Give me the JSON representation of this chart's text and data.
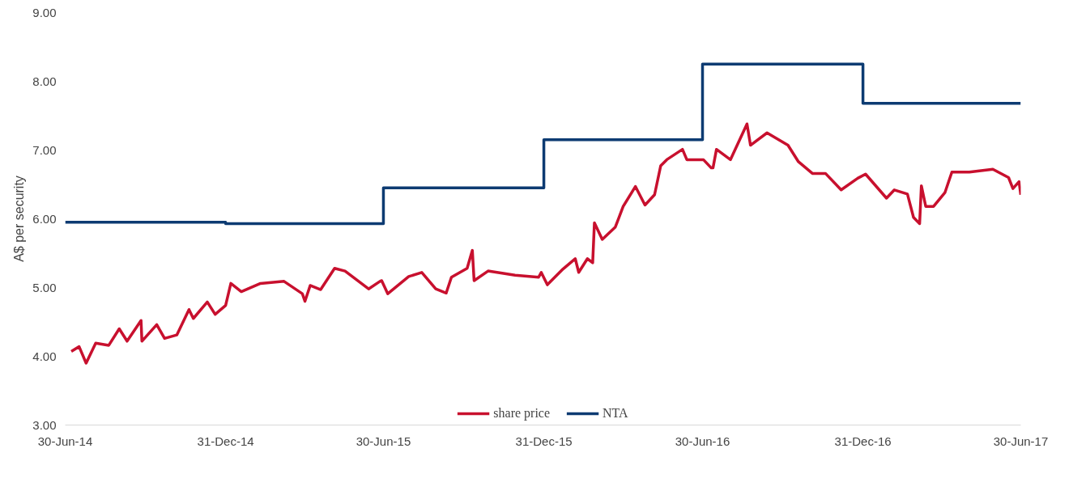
{
  "chart_data": {
    "type": "line",
    "ylabel": "A$ per security",
    "xlim": [
      "2014-06-30",
      "2017-06-30"
    ],
    "ylim": [
      3,
      9
    ],
    "xticks": [
      {
        "value": "2014-06-30",
        "label": "30-Jun-14"
      },
      {
        "value": "2014-12-31",
        "label": "31-Dec-14"
      },
      {
        "value": "2015-06-30",
        "label": "30-Jun-15"
      },
      {
        "value": "2015-12-31",
        "label": "31-Dec-15"
      },
      {
        "value": "2016-06-30",
        "label": "30-Jun-16"
      },
      {
        "value": "2016-12-31",
        "label": "31-Dec-16"
      },
      {
        "value": "2017-06-30",
        "label": "30-Jun-17"
      }
    ],
    "yticks": [
      {
        "value": 3,
        "label": "3.00"
      },
      {
        "value": 4,
        "label": "4.00"
      },
      {
        "value": 5,
        "label": "5.00"
      },
      {
        "value": 6,
        "label": "6.00"
      },
      {
        "value": 7,
        "label": "7.00"
      },
      {
        "value": 8,
        "label": "8.00"
      },
      {
        "value": 9,
        "label": "9.00"
      }
    ],
    "grid": false,
    "legend": "bottom",
    "line_style": "solid",
    "marker": "none",
    "series": [
      {
        "name": "share price",
        "color": "#c8102e",
        "type": "line",
        "x": [
          "2014-07-07",
          "2014-07-16",
          "2014-07-24",
          "2014-08-04",
          "2014-08-19",
          "2014-08-31",
          "2014-09-09",
          "2014-09-25",
          "2014-09-26",
          "2014-10-13",
          "2014-10-22",
          "2014-11-05",
          "2014-11-19",
          "2014-11-24",
          "2014-12-10",
          "2014-12-19",
          "2014-12-31",
          "2015-01-06",
          "2015-01-18",
          "2015-02-09",
          "2015-03-08",
          "2015-03-29",
          "2015-04-01",
          "2015-04-07",
          "2015-04-19",
          "2015-05-05",
          "2015-05-17",
          "2015-06-13",
          "2015-06-26",
          "2015-06-28",
          "2015-07-05",
          "2015-07-29",
          "2015-08-13",
          "2015-08-29",
          "2015-09-10",
          "2015-09-16",
          "2015-10-04",
          "2015-10-10",
          "2015-10-12",
          "2015-10-28",
          "2015-11-28",
          "2015-12-25",
          "2015-12-28",
          "2016-01-04",
          "2016-01-22",
          "2016-02-05",
          "2016-02-09",
          "2016-02-19",
          "2016-02-25",
          "2016-02-27",
          "2016-03-07",
          "2016-03-22",
          "2016-03-31",
          "2016-04-14",
          "2016-04-25",
          "2016-05-06",
          "2016-05-13",
          "2016-05-20",
          "2016-06-07",
          "2016-06-12",
          "2016-07-01",
          "2016-07-10",
          "2016-07-12",
          "2016-07-16",
          "2016-08-01",
          "2016-08-20",
          "2016-08-24",
          "2016-09-12",
          "2016-10-06",
          "2016-10-18",
          "2016-11-03",
          "2016-11-18",
          "2016-12-06",
          "2016-12-25",
          "2017-01-03",
          "2017-01-27",
          "2017-02-05",
          "2017-02-20",
          "2017-02-27",
          "2017-03-06",
          "2017-03-08",
          "2017-03-13",
          "2017-03-22",
          "2017-04-04",
          "2017-04-12",
          "2017-05-02",
          "2017-05-29",
          "2017-06-16",
          "2017-06-21",
          "2017-06-28",
          "2017-06-30"
        ],
        "values": [
          4.07,
          4.14,
          3.9,
          4.19,
          4.16,
          4.4,
          4.22,
          4.52,
          4.22,
          4.46,
          4.26,
          4.31,
          4.68,
          4.55,
          4.79,
          4.61,
          4.74,
          5.06,
          4.94,
          5.06,
          5.09,
          4.91,
          4.8,
          5.03,
          4.97,
          5.28,
          5.24,
          4.98,
          5.09,
          5.1,
          4.91,
          5.16,
          5.22,
          4.98,
          4.92,
          5.15,
          5.28,
          5.54,
          5.1,
          5.24,
          5.18,
          5.15,
          5.22,
          5.04,
          5.27,
          5.42,
          5.22,
          5.42,
          5.36,
          5.94,
          5.7,
          5.88,
          6.18,
          6.47,
          6.2,
          6.35,
          6.77,
          6.86,
          7.01,
          6.86,
          6.86,
          6.74,
          6.74,
          7.01,
          6.86,
          7.38,
          7.07,
          7.25,
          7.07,
          6.83,
          6.66,
          6.66,
          6.42,
          6.59,
          6.65,
          6.3,
          6.42,
          6.36,
          6.02,
          5.93,
          6.48,
          6.18,
          6.18,
          6.38,
          6.68,
          6.68,
          6.72,
          6.6,
          6.44,
          6.54,
          6.35
        ]
      },
      {
        "name": "NTA",
        "color": "#0d3b72",
        "type": "step",
        "x": [
          "2014-06-30",
          "2014-12-31",
          "2015-06-30",
          "2015-12-31",
          "2016-06-30",
          "2016-12-31",
          "2017-06-30"
        ],
        "values": [
          5.95,
          5.93,
          6.45,
          7.15,
          8.25,
          7.68,
          7.68
        ]
      }
    ]
  }
}
